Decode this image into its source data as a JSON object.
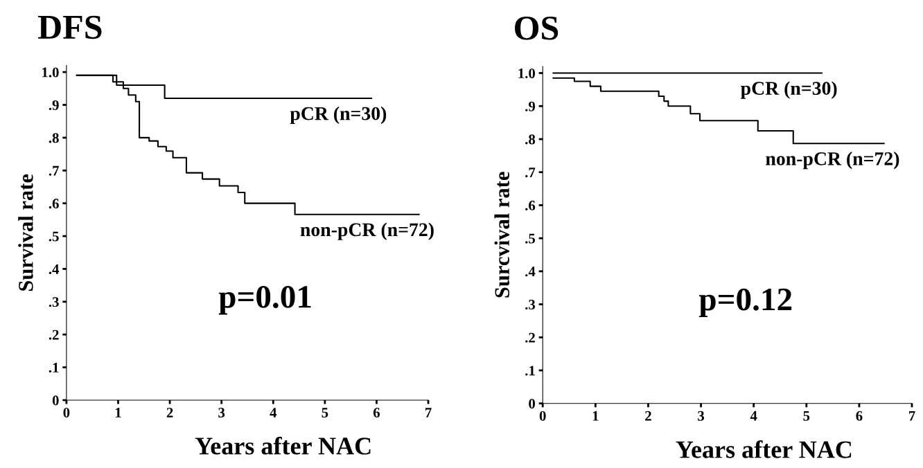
{
  "chart_data": [
    {
      "type": "step",
      "title": "DFS",
      "xlabel": "Years after NAC",
      "ylabel": "Survival rate",
      "xlim": [
        0,
        7
      ],
      "ylim": [
        0,
        1.02
      ],
      "xticks": [
        0,
        1,
        2,
        3,
        4,
        5,
        6,
        7
      ],
      "yticks": [
        0,
        {
          "value": 0.1,
          "label": ".1"
        },
        {
          "value": 0.2,
          "label": ".2"
        },
        {
          "value": 0.3,
          "label": ".3"
        },
        {
          "value": 0.4,
          "label": ".4"
        },
        {
          "value": 0.5,
          "label": ".5"
        },
        {
          "value": 0.6,
          "label": ".6"
        },
        {
          "value": 0.7,
          "label": ".7"
        },
        {
          "value": 0.8,
          "label": ".8"
        },
        {
          "value": 0.9,
          "label": ".9"
        },
        {
          "value": 1.0,
          "label": "1.0"
        }
      ],
      "series": [
        {
          "name": "pCR (n=30)",
          "color": "#000000",
          "x": [
            0.2,
            0.97,
            1.9,
            5.9
          ],
          "values": [
            0.99,
            0.96,
            0.92,
            0.92
          ]
        },
        {
          "name": "non-pCR (n=72)",
          "color": "#000000",
          "x": [
            0.2,
            0.9,
            1.1,
            1.2,
            1.34,
            1.41,
            1.6,
            1.77,
            1.93,
            2.06,
            2.32,
            2.63,
            2.96,
            3.32,
            3.45,
            4.42,
            6.82
          ],
          "values": [
            0.99,
            0.97,
            0.95,
            0.93,
            0.91,
            0.8,
            0.79,
            0.773,
            0.759,
            0.739,
            0.693,
            0.674,
            0.653,
            0.633,
            0.6,
            0.566,
            0.566
          ]
        }
      ],
      "annotations": [
        "p=0.01"
      ]
    },
    {
      "type": "step",
      "title": "OS",
      "xlabel": "Years after NAC",
      "ylabel": "Surcvival rate",
      "xlim": [
        0,
        7
      ],
      "ylim": [
        0,
        1.02
      ],
      "xticks": [
        0,
        1,
        2,
        3,
        4,
        5,
        6,
        7
      ],
      "yticks": [
        0,
        {
          "value": 0.1,
          "label": ".1"
        },
        {
          "value": 0.2,
          "label": ".2"
        },
        {
          "value": 0.3,
          "label": ".3"
        },
        {
          "value": 0.4,
          "label": ".4"
        },
        {
          "value": 0.5,
          "label": ".5"
        },
        {
          "value": 0.6,
          "label": ".6"
        },
        {
          "value": 0.7,
          "label": ".7"
        },
        {
          "value": 0.8,
          "label": ".8"
        },
        {
          "value": 0.9,
          "label": ".9"
        },
        {
          "value": 1.0,
          "label": "1.0"
        }
      ],
      "series": [
        {
          "name": "pCR (n=30)",
          "color": "#000000",
          "x": [
            0.2,
            5.29
          ],
          "values": [
            1.0,
            1.0
          ]
        },
        {
          "name": "non-pCR (n=72)",
          "color": "#000000",
          "x": [
            0.2,
            0.6,
            0.9,
            1.1,
            2.2,
            2.3,
            2.38,
            2.8,
            2.98,
            4.08,
            4.75,
            6.47
          ],
          "values": [
            0.985,
            0.975,
            0.96,
            0.945,
            0.93,
            0.915,
            0.9,
            0.877,
            0.856,
            0.825,
            0.787,
            0.787
          ]
        }
      ],
      "annotations": [
        "p=0.12"
      ]
    }
  ]
}
